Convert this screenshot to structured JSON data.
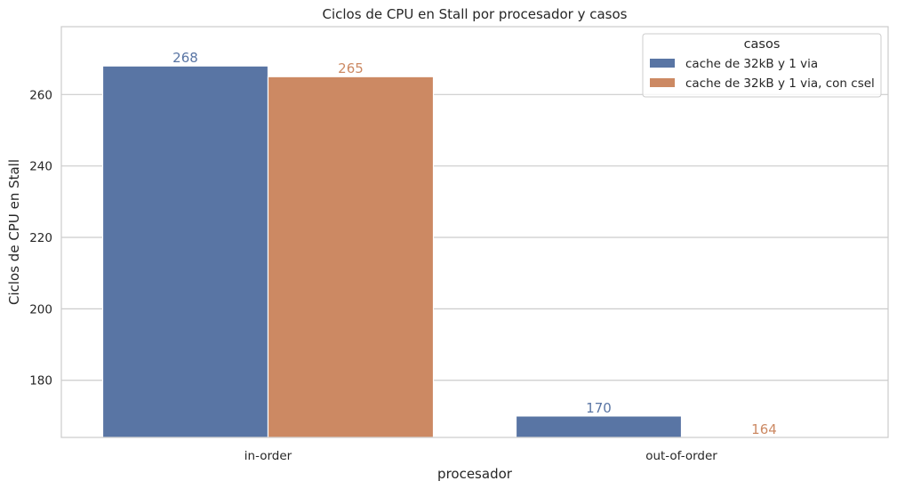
{
  "chart_data": {
    "type": "bar",
    "title": "Ciclos de CPU en Stall por procesador y casos",
    "xlabel": "procesador",
    "ylabel": "Ciclos de CPU en Stall",
    "categories": [
      "in-order",
      "out-of-order"
    ],
    "series": [
      {
        "name": "cache de 32kB y 1 via",
        "values": [
          268,
          170
        ],
        "labels": [
          "268",
          "170"
        ],
        "color": "#5975a4"
      },
      {
        "name": "cache de 32kB y 1 via, con csel",
        "values": [
          265,
          164
        ],
        "labels": [
          "265",
          "164"
        ],
        "color": "#cc8963"
      }
    ],
    "ylim": [
      164,
      279
    ],
    "yticks": [
      180,
      200,
      220,
      240,
      260
    ],
    "yticklabels": [
      "180",
      "200",
      "220",
      "240",
      "260"
    ],
    "grid": "horizontal",
    "legend": {
      "title": "casos",
      "placement": "top-right"
    }
  }
}
